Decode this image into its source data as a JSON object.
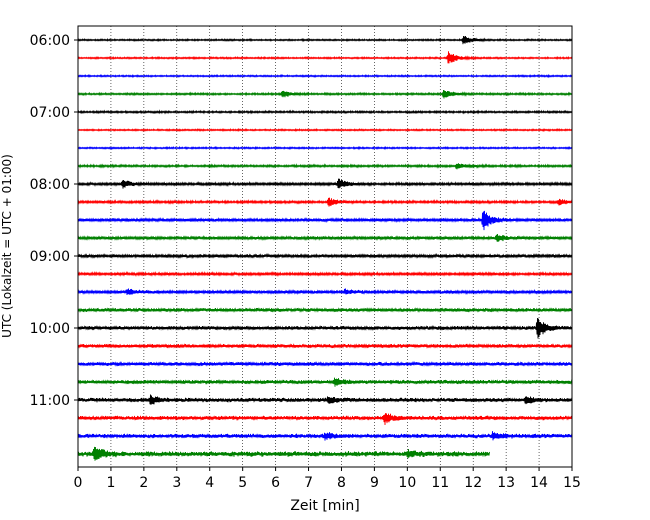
{
  "chart_data": {
    "type": "line",
    "xlabel": "Zeit  [min]",
    "ylabel": "UTC (Lokalzeit = UTC + 01:00)",
    "xlim": [
      0,
      15
    ],
    "x_ticks": [
      0,
      1,
      2,
      3,
      4,
      5,
      6,
      7,
      8,
      9,
      10,
      11,
      12,
      13,
      14,
      15
    ],
    "y_ticks": [
      "06:00",
      "07:00",
      "08:00",
      "09:00",
      "10:00",
      "11:00"
    ],
    "grid": "vertical-dotted",
    "trace_colors": [
      "#000000",
      "#ff0000",
      "#0000ff",
      "#008000"
    ],
    "series": [
      {
        "start": "06:00",
        "noise": 0.15,
        "end_min": 15,
        "events": [
          {
            "t": 11.7,
            "a": 1.2
          }
        ]
      },
      {
        "start": "06:15",
        "noise": 0.15,
        "end_min": 15,
        "events": [
          {
            "t": 11.25,
            "a": 1.6
          }
        ]
      },
      {
        "start": "06:30",
        "noise": 0.15,
        "end_min": 15,
        "events": []
      },
      {
        "start": "06:45",
        "noise": 0.18,
        "end_min": 15,
        "events": [
          {
            "t": 6.2,
            "a": 1.0
          },
          {
            "t": 11.1,
            "a": 1.1
          }
        ]
      },
      {
        "start": "07:00",
        "noise": 0.18,
        "end_min": 15,
        "events": []
      },
      {
        "start": "07:15",
        "noise": 0.15,
        "end_min": 15,
        "events": []
      },
      {
        "start": "07:30",
        "noise": 0.15,
        "end_min": 15,
        "events": []
      },
      {
        "start": "07:45",
        "noise": 0.2,
        "end_min": 15,
        "events": [
          {
            "t": 11.5,
            "a": 0.8
          }
        ]
      },
      {
        "start": "08:00",
        "noise": 0.25,
        "end_min": 15,
        "events": [
          {
            "t": 1.35,
            "a": 1.0
          },
          {
            "t": 7.9,
            "a": 1.2
          }
        ]
      },
      {
        "start": "08:15",
        "noise": 0.22,
        "end_min": 15,
        "events": [
          {
            "t": 7.6,
            "a": 1.1
          },
          {
            "t": 14.6,
            "a": 0.7
          }
        ]
      },
      {
        "start": "08:30",
        "noise": 0.3,
        "end_min": 15,
        "events": [
          {
            "t": 12.3,
            "a": 2.5
          }
        ]
      },
      {
        "start": "08:45",
        "noise": 0.3,
        "end_min": 15,
        "events": [
          {
            "t": 12.7,
            "a": 0.8
          }
        ]
      },
      {
        "start": "09:00",
        "noise": 0.3,
        "end_min": 15,
        "events": []
      },
      {
        "start": "09:15",
        "noise": 0.25,
        "end_min": 15,
        "events": []
      },
      {
        "start": "09:30",
        "noise": 0.3,
        "end_min": 15,
        "events": [
          {
            "t": 1.5,
            "a": 0.7
          },
          {
            "t": 8.1,
            "a": 0.6
          }
        ]
      },
      {
        "start": "09:45",
        "noise": 0.35,
        "end_min": 15,
        "events": []
      },
      {
        "start": "10:00",
        "noise": 0.35,
        "end_min": 15,
        "events": [
          {
            "t": 13.95,
            "a": 2.4
          }
        ]
      },
      {
        "start": "10:15",
        "noise": 0.35,
        "end_min": 15,
        "events": []
      },
      {
        "start": "10:30",
        "noise": 0.35,
        "end_min": 15,
        "events": []
      },
      {
        "start": "10:45",
        "noise": 0.38,
        "end_min": 15,
        "events": [
          {
            "t": 7.8,
            "a": 0.8
          }
        ]
      },
      {
        "start": "11:00",
        "noise": 0.4,
        "end_min": 15,
        "events": [
          {
            "t": 2.2,
            "a": 1.0
          },
          {
            "t": 7.6,
            "a": 0.9
          },
          {
            "t": 13.6,
            "a": 0.9
          }
        ]
      },
      {
        "start": "11:15",
        "noise": 0.4,
        "end_min": 15,
        "events": [
          {
            "t": 9.3,
            "a": 1.3
          }
        ]
      },
      {
        "start": "11:30",
        "noise": 0.4,
        "end_min": 15,
        "events": [
          {
            "t": 7.5,
            "a": 0.8
          },
          {
            "t": 12.6,
            "a": 0.9
          }
        ]
      },
      {
        "start": "11:45",
        "noise": 0.5,
        "end_min": 12.5,
        "events": [
          {
            "t": 0.5,
            "a": 1.8
          },
          {
            "t": 10.0,
            "a": 0.6
          }
        ]
      }
    ]
  }
}
